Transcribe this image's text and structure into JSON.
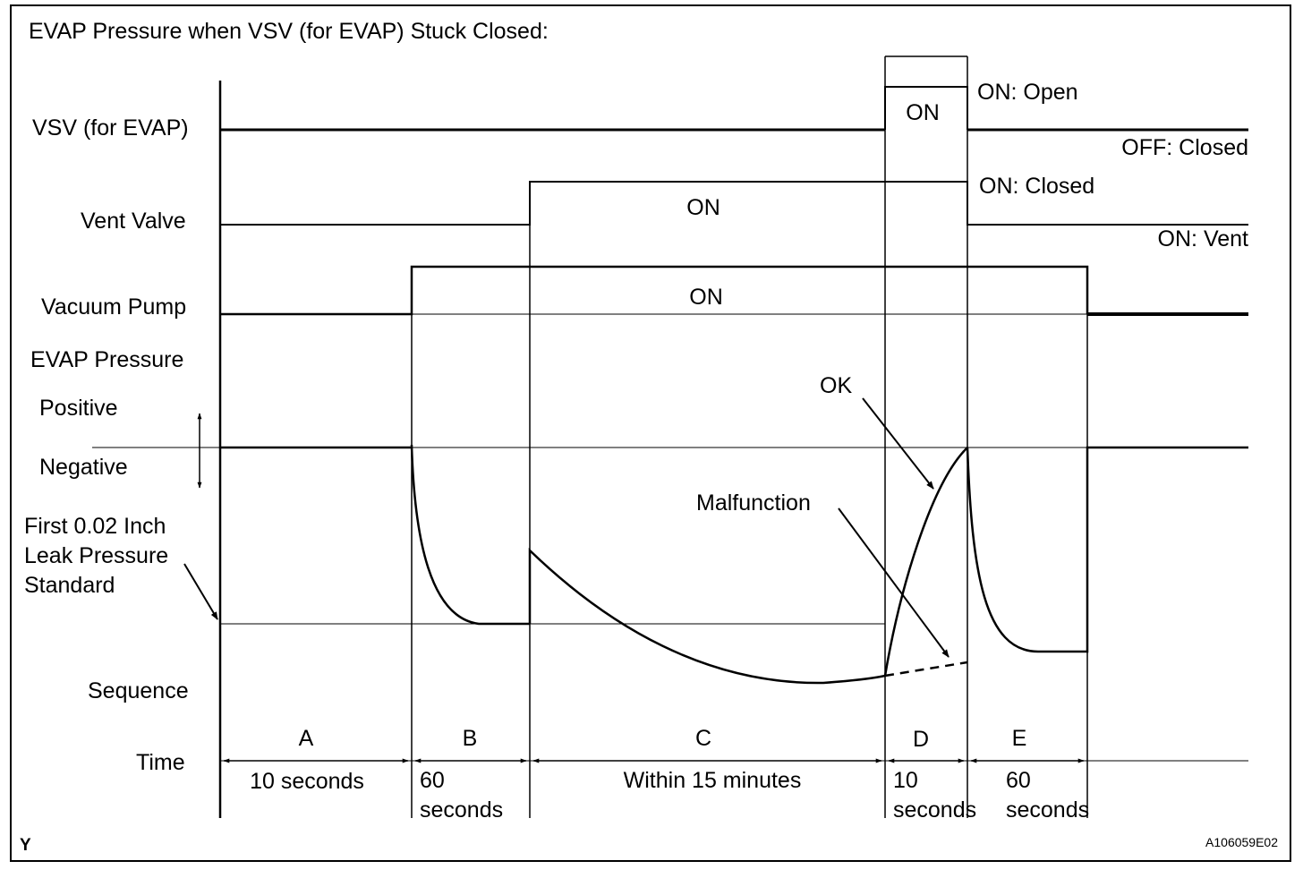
{
  "title": "EVAP Pressure when VSV (for EVAP) Stuck Closed:",
  "row_labels": {
    "vsv": "VSV (for EVAP)",
    "vent_valve": "Vent Valve",
    "vacuum_pump": "Vacuum Pump",
    "evap_pressure": "EVAP Pressure",
    "positive": "Positive",
    "negative": "Negative",
    "leak_line1": "First 0.02 Inch",
    "leak_line2": "Leak Pressure",
    "leak_line3": "Standard",
    "sequence": "Sequence",
    "time": "Time"
  },
  "signals": {
    "vsv_on": "ON",
    "vsv_open": "ON: Open",
    "vsv_closed": "OFF: Closed",
    "vent_on": "ON",
    "vent_closed": "ON: Closed",
    "vent_vent": "ON: Vent",
    "pump_on": "ON"
  },
  "annotations": {
    "ok": "OK",
    "malfunction": "Malfunction"
  },
  "sequence": [
    {
      "phase": "A",
      "time1": "10 seconds",
      "time2": ""
    },
    {
      "phase": "B",
      "time1": "60",
      "time2": "seconds"
    },
    {
      "phase": "C",
      "time1": "Within 15 minutes",
      "time2": ""
    },
    {
      "phase": "D",
      "time1": "10",
      "time2": "seconds"
    },
    {
      "phase": "E",
      "time1": "60",
      "time2": "seconds"
    }
  ],
  "corner_left": "Y",
  "figure_id": "A106059E02"
}
